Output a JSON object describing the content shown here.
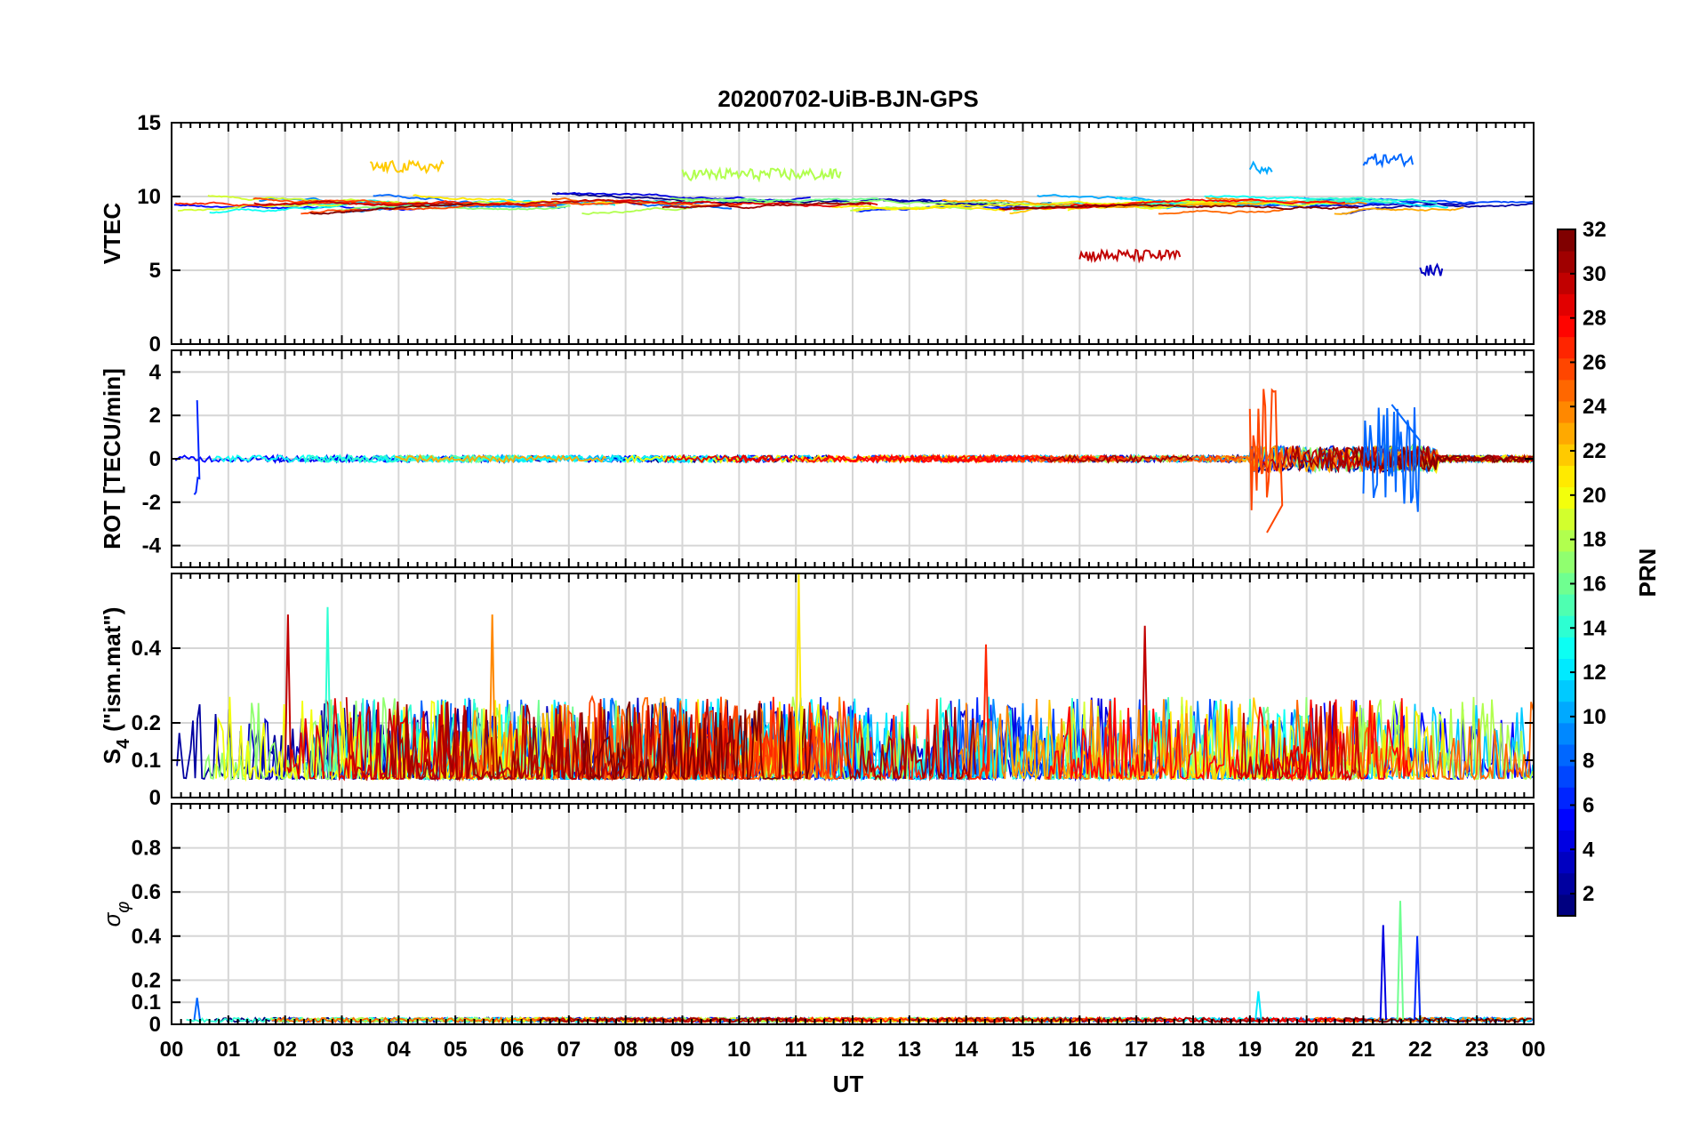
{
  "chart_data": {
    "type": "line",
    "title": "20200702-UiB-BJN-GPS",
    "xlabel": "UT",
    "x_ticks": [
      "00",
      "01",
      "02",
      "03",
      "04",
      "05",
      "06",
      "07",
      "08",
      "09",
      "10",
      "11",
      "12",
      "13",
      "14",
      "15",
      "16",
      "17",
      "18",
      "19",
      "20",
      "21",
      "22",
      "23",
      "00"
    ],
    "xlim_hours": [
      0,
      24
    ],
    "colorbar": {
      "label": "PRN",
      "range": [
        1,
        32
      ],
      "ticks": [
        "2",
        "4",
        "6",
        "8",
        "10",
        "12",
        "14",
        "16",
        "18",
        "20",
        "22",
        "24",
        "26",
        "28",
        "30",
        "32"
      ],
      "colormap": "jet"
    },
    "panels": [
      {
        "name": "vtec",
        "ylabel": "VTEC",
        "ylim": [
          0,
          15
        ],
        "yticks": [
          "0",
          "5",
          "10",
          "15"
        ],
        "grid_y": [
          5,
          10
        ],
        "baseline": 9.5,
        "noise": 0.35,
        "features": [
          {
            "prn": 8,
            "t": [
              21.0,
              21.9
            ],
            "value": 12.5
          },
          {
            "prn": 10,
            "t": [
              19.0,
              19.4
            ],
            "value": 12.0
          },
          {
            "prn": 30,
            "t": [
              16.0,
              17.8
            ],
            "value": 6.0
          },
          {
            "prn": 22,
            "t": [
              3.5,
              4.8
            ],
            "value": 12.0
          },
          {
            "prn": 18,
            "t": [
              9.0,
              11.8
            ],
            "value": 11.5
          },
          {
            "prn": 3,
            "t": [
              22.0,
              22.4
            ],
            "value": 5.0
          }
        ]
      },
      {
        "name": "rot",
        "ylabel": "ROT [TECU/min]",
        "ylim": [
          -5,
          5
        ],
        "yticks": [
          "-4",
          "-2",
          "0",
          "2",
          "4"
        ],
        "grid_y": [
          -4,
          -2,
          0,
          2,
          4
        ],
        "baseline": 0.0,
        "noise": 0.15,
        "features": [
          {
            "prn": 8,
            "t": [
              21.0,
              22.0
            ],
            "value": 2.5
          },
          {
            "prn": 26,
            "t": [
              19.0,
              19.6
            ],
            "value": -3.4
          },
          {
            "prn": 6,
            "t": [
              0.4,
              0.5
            ],
            "value": 2.7
          }
        ]
      },
      {
        "name": "s4",
        "ylabel": "S4 (\"ism.mat\")",
        "ylabel_main": "S",
        "ylabel_sub": "4",
        "ylabel_rest": "(\"ism.mat\")",
        "ylim": [
          0,
          0.6
        ],
        "yticks": [
          "0",
          "0.1",
          "0.2",
          "0.4"
        ],
        "grid_y": [
          0.1,
          0.2,
          0.4
        ],
        "baseline": 0.07,
        "noise": 0.06,
        "features": [
          {
            "prn": 21,
            "t": [
              11.0,
              11.1
            ],
            "value": 0.6
          },
          {
            "prn": 14,
            "t": [
              2.7,
              2.8
            ],
            "value": 0.51
          },
          {
            "prn": 30,
            "t": [
              2.0,
              2.1
            ],
            "value": 0.49
          },
          {
            "prn": 24,
            "t": [
              5.6,
              5.7
            ],
            "value": 0.49
          },
          {
            "prn": 30,
            "t": [
              17.1,
              17.2
            ],
            "value": 0.46
          },
          {
            "prn": 27,
            "t": [
              14.3,
              14.4
            ],
            "value": 0.41
          }
        ]
      },
      {
        "name": "sigma_phi",
        "ylabel": "σ φ",
        "ylabel_main": "σ",
        "ylabel_sub": "φ",
        "ylim": [
          0,
          1.0
        ],
        "yticks": [
          "0",
          "0.1",
          "0.2",
          "0.4",
          "0.6",
          "0.8"
        ],
        "grid_y": [
          0.1,
          0.2,
          0.4,
          0.6,
          0.8
        ],
        "baseline": 0.02,
        "noise": 0.01,
        "features": [
          {
            "prn": 16,
            "t": [
              21.6,
              21.7
            ],
            "value": 0.56
          },
          {
            "prn": 4,
            "t": [
              21.3,
              21.4
            ],
            "value": 0.45
          },
          {
            "prn": 6,
            "t": [
              21.9,
              22.0
            ],
            "value": 0.4
          },
          {
            "prn": 12,
            "t": [
              19.1,
              19.2
            ],
            "value": 0.15
          },
          {
            "prn": 8,
            "t": [
              0.4,
              0.5
            ],
            "value": 0.12
          }
        ]
      }
    ]
  }
}
